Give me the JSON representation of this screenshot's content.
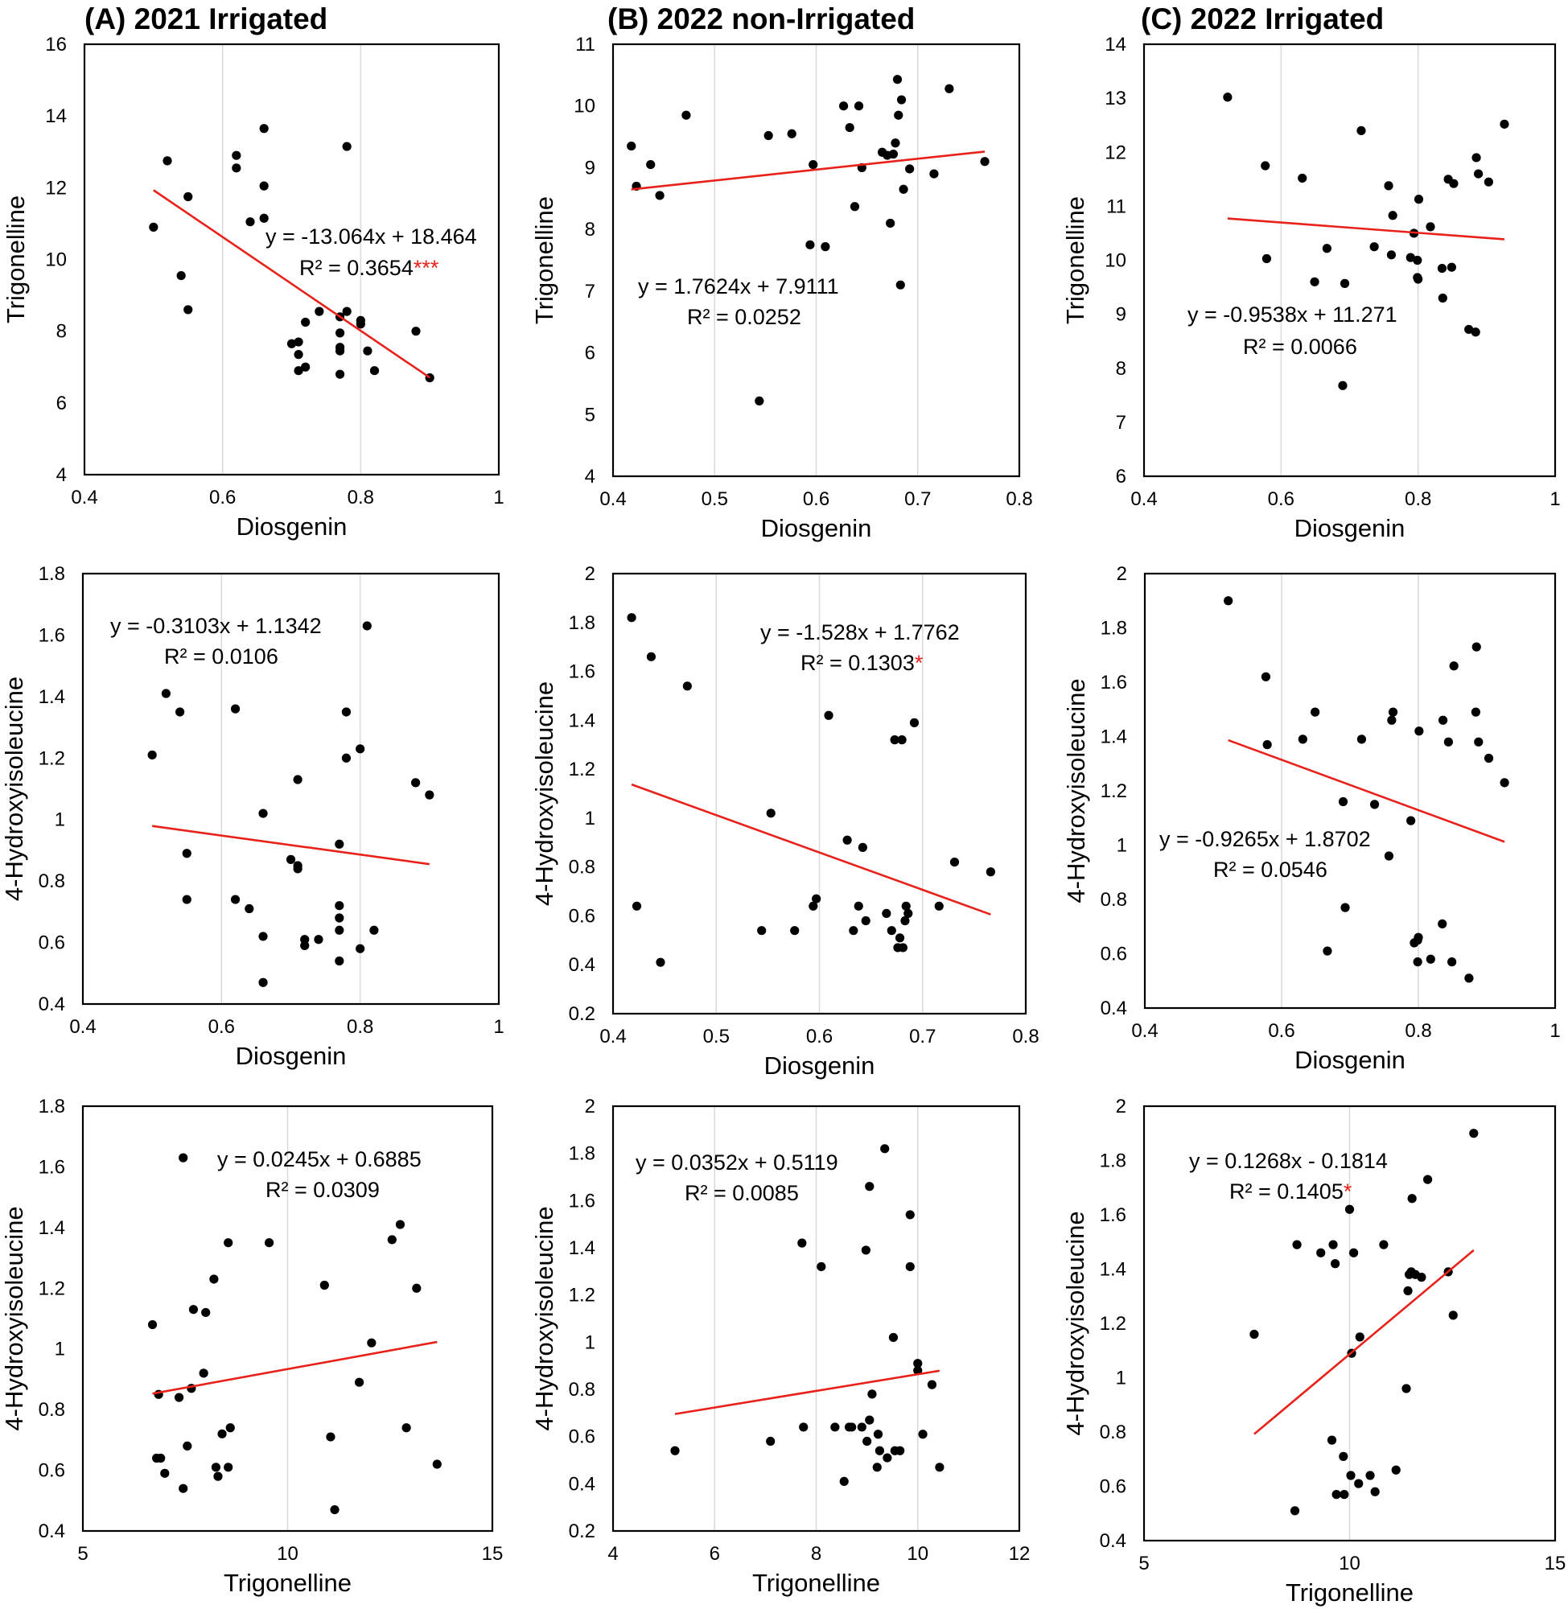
{
  "chart_data": [
    {
      "type": "scatter",
      "title": "(A) 2021 Irrigated",
      "xlabel": "Diosgenin",
      "ylabel": "Trigonelline",
      "xlim": [
        0.4,
        1
      ],
      "ylim": [
        4,
        16
      ],
      "xticks": [
        "0.4",
        "0.6",
        "0.8",
        "1"
      ],
      "yticks": [
        "4",
        "6",
        "8",
        "10",
        "12",
        "14",
        "16"
      ],
      "equation": "y = -13.064x + 18.464",
      "r2_text": "R² = 0.3654",
      "significance": "***",
      "trendline": {
        "slope": -13.064,
        "intercept": 18.464,
        "x_range": [
          0.5,
          0.9
        ]
      },
      "x": [
        0.5,
        0.52,
        0.54,
        0.55,
        0.55,
        0.62,
        0.62,
        0.64,
        0.66,
        0.66,
        0.66,
        0.7,
        0.71,
        0.71,
        0.71,
        0.72,
        0.72,
        0.74,
        0.77,
        0.77,
        0.77,
        0.77,
        0.77,
        0.78,
        0.78,
        0.8,
        0.8,
        0.81,
        0.82,
        0.88,
        0.9
      ],
      "y": [
        10.9,
        12.75,
        9.55,
        11.75,
        8.6,
        12.9,
        12.55,
        11.05,
        13.65,
        12.05,
        11.15,
        7.65,
        7.7,
        7.35,
        6.9,
        8.25,
        7.0,
        8.55,
        8.4,
        7.95,
        7.55,
        7.45,
        6.8,
        8.55,
        13.15,
        8.3,
        8.2,
        7.45,
        6.9,
        8.0,
        6.7
      ]
    },
    {
      "type": "scatter",
      "title": "(B) 2022 non-Irrigated",
      "xlabel": "Diosgenin",
      "ylabel": "Trigonelline",
      "xlim": [
        0.4,
        0.8
      ],
      "ylim": [
        4,
        11
      ],
      "xticks": [
        "0.4",
        "0.5",
        "0.6",
        "0.7",
        "0.8"
      ],
      "yticks": [
        "4",
        "5",
        "6",
        "7",
        "8",
        "9",
        "10",
        "11"
      ],
      "equation": "y = 1.7624x + 7.9111",
      "r2_text": "R² = 0.0252",
      "significance": "",
      "trendline": {
        "slope": 1.7624,
        "intercept": 7.9111,
        "x_range": [
          0.418,
          0.766
        ]
      },
      "x": [
        0.418,
        0.423,
        0.437,
        0.446,
        0.472,
        0.544,
        0.553,
        0.576,
        0.594,
        0.597,
        0.609,
        0.627,
        0.633,
        0.638,
        0.642,
        0.645,
        0.665,
        0.67,
        0.673,
        0.676,
        0.678,
        0.68,
        0.681,
        0.683,
        0.684,
        0.686,
        0.692,
        0.716,
        0.731,
        0.766
      ],
      "y": [
        9.35,
        8.7,
        9.05,
        8.55,
        9.85,
        5.22,
        9.52,
        9.55,
        7.75,
        9.05,
        7.72,
        10.0,
        9.65,
        8.37,
        10.0,
        9.0,
        9.25,
        9.2,
        8.1,
        9.22,
        9.4,
        10.43,
        9.85,
        7.1,
        10.1,
        8.65,
        8.98,
        8.9,
        10.28,
        9.1
      ]
    },
    {
      "type": "scatter",
      "title": "(C) 2022 Irrigated",
      "xlabel": "Diosgenin",
      "ylabel": "Trigonelline",
      "xlim": [
        0.4,
        1
      ],
      "ylim": [
        6,
        14
      ],
      "xticks": [
        "0.4",
        "0.6",
        "0.8",
        "1"
      ],
      "yticks": [
        "6",
        "7",
        "8",
        "9",
        "10",
        "11",
        "12",
        "13",
        "14"
      ],
      "equation": "y = -0.9538x + 11.271",
      "r2_text": "R² = 0.0066",
      "significance": "",
      "trendline": {
        "slope": -0.9538,
        "intercept": 11.271,
        "x_range": [
          0.522,
          0.926
        ]
      },
      "x": [
        0.522,
        0.577,
        0.579,
        0.631,
        0.649,
        0.667,
        0.69,
        0.693,
        0.717,
        0.736,
        0.757,
        0.761,
        0.763,
        0.789,
        0.794,
        0.799,
        0.799,
        0.8,
        0.801,
        0.818,
        0.835,
        0.836,
        0.844,
        0.849,
        0.852,
        0.874,
        0.884,
        0.885,
        0.888,
        0.903,
        0.926
      ],
      "y": [
        13.02,
        11.75,
        10.03,
        11.52,
        9.6,
        10.22,
        7.68,
        9.57,
        12.4,
        10.25,
        11.38,
        10.1,
        10.83,
        10.05,
        10.5,
        10.0,
        9.68,
        9.65,
        11.13,
        10.62,
        9.85,
        9.3,
        11.5,
        9.87,
        11.42,
        8.72,
        8.67,
        11.9,
        11.6,
        11.45,
        12.52
      ]
    },
    {
      "type": "scatter",
      "title": "",
      "xlabel": "Diosgenin",
      "ylabel": "4-Hydroxyisoleucine",
      "xlim": [
        0.4,
        1
      ],
      "ylim": [
        0.4,
        1.8
      ],
      "xticks": [
        "0.4",
        "0.6",
        "0.8",
        "1"
      ],
      "yticks": [
        "0.4",
        "0.6",
        "0.8",
        "1",
        "1.2",
        "1.4",
        "1.6",
        "1.8"
      ],
      "equation": "y = -0.3103x + 1.1342",
      "r2_text": "R² = 0.0106",
      "significance": "",
      "trendline": {
        "slope": -0.3103,
        "intercept": 1.1342,
        "x_range": [
          0.5,
          0.9
        ]
      },
      "x": [
        0.5,
        0.52,
        0.54,
        0.55,
        0.55,
        0.62,
        0.62,
        0.64,
        0.66,
        0.66,
        0.66,
        0.7,
        0.71,
        0.71,
        0.71,
        0.72,
        0.72,
        0.74,
        0.77,
        0.77,
        0.77,
        0.77,
        0.77,
        0.78,
        0.78,
        0.8,
        0.8,
        0.81,
        0.82,
        0.88,
        0.9
      ],
      "y": [
        1.21,
        1.41,
        1.35,
        0.89,
        0.74,
        1.36,
        0.74,
        0.71,
        1.02,
        0.62,
        0.47,
        0.87,
        1.13,
        0.85,
        0.84,
        0.61,
        0.59,
        0.61,
        0.92,
        0.72,
        0.68,
        0.64,
        0.54,
        1.35,
        1.2,
        1.23,
        0.58,
        1.63,
        0.64,
        1.12,
        1.08
      ]
    },
    {
      "type": "scatter",
      "title": "",
      "xlabel": "Diosgenin",
      "ylabel": "4-Hydroxyisoleucine",
      "xlim": [
        0.4,
        0.8
      ],
      "ylim": [
        0.2,
        2
      ],
      "xticks": [
        "0.4",
        "0.5",
        "0.6",
        "0.7",
        "0.8"
      ],
      "yticks": [
        "0.2",
        "0.4",
        "0.6",
        "0.8",
        "1",
        "1.2",
        "1.4",
        "1.6",
        "1.8",
        "2"
      ],
      "equation": "y = -1.528x + 1.7762",
      "r2_text": "R² = 0.1303",
      "significance": "*",
      "trendline": {
        "slope": -1.528,
        "intercept": 1.7762,
        "x_range": [
          0.418,
          0.766
        ]
      },
      "x": [
        0.418,
        0.423,
        0.437,
        0.446,
        0.472,
        0.544,
        0.553,
        0.576,
        0.594,
        0.597,
        0.609,
        0.627,
        0.633,
        0.638,
        0.642,
        0.645,
        0.665,
        0.67,
        0.673,
        0.676,
        0.678,
        0.68,
        0.681,
        0.683,
        0.684,
        0.686,
        0.692,
        0.716,
        0.731,
        0.766
      ],
      "y": [
        1.82,
        0.64,
        1.66,
        0.41,
        1.54,
        0.54,
        1.02,
        0.54,
        0.64,
        0.67,
        1.42,
        0.91,
        0.54,
        0.64,
        0.88,
        0.58,
        0.61,
        0.54,
        1.32,
        0.47,
        0.51,
        1.32,
        0.47,
        0.58,
        0.64,
        0.61,
        1.39,
        0.64,
        0.82,
        0.78
      ]
    },
    {
      "type": "scatter",
      "title": "",
      "xlabel": "Diosgenin",
      "ylabel": "4-Hydroxyisoleucine",
      "xlim": [
        0.4,
        1
      ],
      "ylim": [
        0.4,
        2
      ],
      "xticks": [
        "0.4",
        "0.6",
        "0.8",
        "1"
      ],
      "yticks": [
        "0.4",
        "0.6",
        "0.8",
        "1",
        "1.2",
        "1.4",
        "1.6",
        "1.8",
        "2"
      ],
      "equation": "y = -0.9265x + 1.8702",
      "r2_text": "R² = 0.0546",
      "significance": "",
      "trendline": {
        "slope": -0.9265,
        "intercept": 1.8702,
        "x_range": [
          0.522,
          0.926
        ]
      },
      "x": [
        0.522,
        0.577,
        0.579,
        0.631,
        0.649,
        0.667,
        0.69,
        0.693,
        0.717,
        0.736,
        0.757,
        0.761,
        0.763,
        0.789,
        0.794,
        0.799,
        0.799,
        0.8,
        0.801,
        0.818,
        0.835,
        0.836,
        0.844,
        0.849,
        0.852,
        0.874,
        0.884,
        0.885,
        0.888,
        0.903,
        0.926
      ],
      "y": [
        1.9,
        1.62,
        1.37,
        1.39,
        1.49,
        0.61,
        1.16,
        0.77,
        1.39,
        1.15,
        0.96,
        1.46,
        1.49,
        1.09,
        0.64,
        0.65,
        0.57,
        0.66,
        1.42,
        0.58,
        0.71,
        1.46,
        1.38,
        0.57,
        1.66,
        0.51,
        1.49,
        1.73,
        1.38,
        1.32,
        1.23
      ]
    },
    {
      "type": "scatter",
      "title": "",
      "xlabel": "Trigonelline",
      "ylabel": "4-Hydroxyisoleucine",
      "xlim": [
        5,
        15
      ],
      "ylim": [
        0.4,
        1.8
      ],
      "xticks": [
        "5",
        "10",
        "15"
      ],
      "yticks": [
        "0.4",
        "0.6",
        "0.8",
        "1",
        "1.2",
        "1.4",
        "1.6",
        "1.8"
      ],
      "equation": "y = 0.0245x + 0.6885",
      "r2_text": "R² = 0.0309",
      "significance": "",
      "trendline": {
        "slope": 0.0245,
        "intercept": 0.6885,
        "x_range": [
          6.7,
          13.65
        ]
      },
      "x": [
        6.7,
        6.8,
        6.85,
        6.9,
        7.0,
        7.35,
        7.45,
        7.55,
        7.65,
        7.7,
        7.95,
        8.0,
        8.2,
        8.25,
        8.3,
        8.4,
        8.55,
        8.55,
        8.6,
        9.55,
        10.9,
        11.05,
        11.15,
        11.75,
        12.05,
        12.55,
        12.75,
        12.9,
        13.15,
        13.65,
        7.45
      ],
      "y": [
        1.08,
        0.64,
        0.85,
        0.64,
        0.59,
        0.84,
        0.54,
        0.68,
        0.87,
        1.13,
        0.92,
        1.12,
        1.23,
        0.61,
        0.58,
        0.72,
        0.61,
        1.35,
        0.74,
        1.35,
        1.21,
        0.71,
        0.47,
        0.89,
        1.02,
        1.36,
        1.41,
        0.74,
        1.2,
        0.62,
        1.63
      ]
    },
    {
      "type": "scatter",
      "title": "",
      "xlabel": "Trigonelline",
      "ylabel": "4-Hydroxyisoleucine",
      "xlim": [
        4,
        12
      ],
      "ylim": [
        0.2,
        2
      ],
      "xticks": [
        "4",
        "6",
        "8",
        "10",
        "12"
      ],
      "yticks": [
        "0.2",
        "0.4",
        "0.6",
        "0.8",
        "1",
        "1.2",
        "1.4",
        "1.6",
        "1.8",
        "2"
      ],
      "equation": "y = 0.0352x + 0.5119",
      "r2_text": "R² = 0.0085",
      "significance": "",
      "trendline": {
        "slope": 0.0352,
        "intercept": 0.5119,
        "x_range": [
          5.22,
          10.43
        ]
      },
      "x": [
        5.22,
        7.1,
        7.72,
        7.75,
        8.1,
        8.37,
        8.55,
        8.65,
        8.7,
        8.9,
        8.98,
        9.0,
        9.05,
        9.05,
        9.1,
        9.2,
        9.22,
        9.25,
        9.35,
        9.4,
        9.52,
        9.55,
        9.65,
        9.85,
        9.85,
        10.0,
        10.0,
        10.1,
        10.28,
        10.43
      ],
      "y": [
        0.54,
        0.58,
        1.42,
        0.64,
        1.32,
        0.64,
        0.41,
        0.64,
        0.64,
        0.64,
        1.39,
        0.58,
        0.67,
        1.66,
        0.78,
        0.47,
        0.61,
        0.54,
        1.82,
        0.51,
        1.02,
        0.54,
        0.54,
        1.54,
        1.32,
        0.91,
        0.88,
        0.61,
        0.82,
        0.47
      ]
    },
    {
      "type": "scatter",
      "title": "",
      "xlabel": "Trigonelline",
      "ylabel": "4-Hydroxyisoleucine",
      "xlim": [
        5,
        15
      ],
      "ylim": [
        0.4,
        2
      ],
      "xticks": [
        "5",
        "10",
        "15"
      ],
      "yticks": [
        "0.4",
        "0.6",
        "0.8",
        "1",
        "1.2",
        "1.4",
        "1.6",
        "1.8",
        "2"
      ],
      "equation": "y = 0.1268x - 0.1814",
      "r2_text": "R² = 0.1405",
      "significance": "*",
      "trendline": {
        "slope": 0.1268,
        "intercept": -0.1814,
        "x_range": [
          7.68,
          13.02
        ]
      },
      "x": [
        7.68,
        8.67,
        8.72,
        9.3,
        9.57,
        9.6,
        9.65,
        9.68,
        9.85,
        9.87,
        10.0,
        10.03,
        10.05,
        10.1,
        10.22,
        10.25,
        10.5,
        10.62,
        10.83,
        11.13,
        11.38,
        11.42,
        11.45,
        11.5,
        11.52,
        11.6,
        11.75,
        11.9,
        12.4,
        12.52,
        13.02
      ],
      "y": [
        1.16,
        0.51,
        1.49,
        1.46,
        0.77,
        1.49,
        1.42,
        0.57,
        0.71,
        0.57,
        1.62,
        0.64,
        1.09,
        1.46,
        0.61,
        1.15,
        0.64,
        0.58,
        1.49,
        0.66,
        0.96,
        1.32,
        1.38,
        1.39,
        1.66,
        1.38,
        1.37,
        1.73,
        1.39,
        1.23,
        1.9
      ]
    }
  ]
}
